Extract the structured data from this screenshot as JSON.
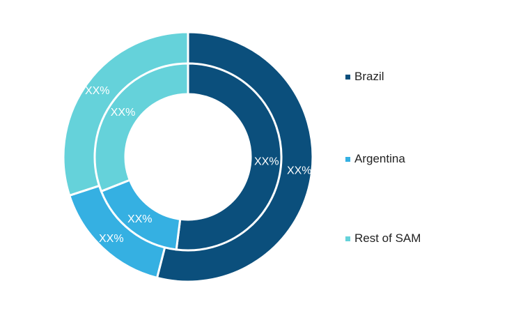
{
  "chart_data": {
    "type": "donut",
    "categories": [
      "Brazil",
      "Argentina",
      "Rest of SAM"
    ],
    "colors": [
      "#0b4f7c",
      "#35b0e2",
      "#65d2da"
    ],
    "series": [
      {
        "values": [
          54,
          16,
          30
        ],
        "labels": [
          "XX%",
          "XX%",
          "XX%"
        ]
      },
      {
        "values": [
          52,
          17,
          31
        ],
        "labels": [
          "XX%",
          "XX%",
          "XX%"
        ]
      }
    ],
    "legend": "right"
  }
}
